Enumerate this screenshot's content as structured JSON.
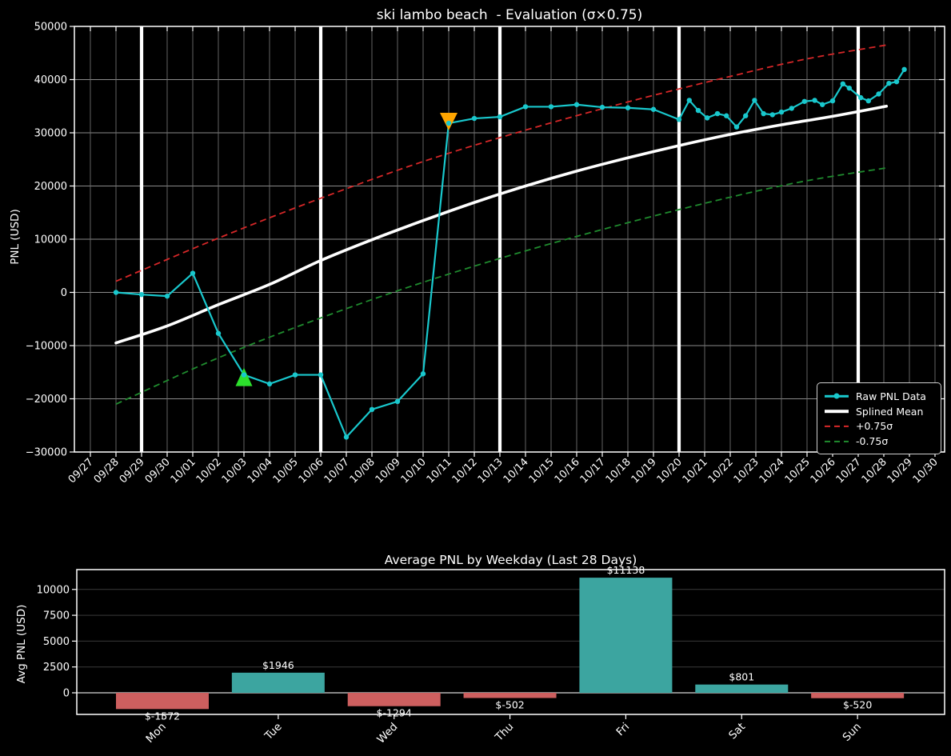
{
  "app": {
    "background": "#000000",
    "text_color": "#ffffff"
  },
  "chart_data": [
    {
      "type": "line",
      "title": "ski lambo beach  - Evaluation (σ×0.75)",
      "ylabel": "PNL (USD)",
      "ylim": [
        -30000,
        50000
      ],
      "y_ticks": [
        -30000,
        -20000,
        -10000,
        0,
        10000,
        20000,
        30000,
        40000,
        50000
      ],
      "x_tick_labels": [
        "09/27",
        "09/28",
        "09/29",
        "09/30",
        "10/01",
        "10/02",
        "10/03",
        "10/04",
        "10/05",
        "10/06",
        "10/07",
        "10/08",
        "10/09",
        "10/10",
        "10/11",
        "10/12",
        "10/13",
        "10/14",
        "10/15",
        "10/16",
        "10/17",
        "10/18",
        "10/19",
        "10/20",
        "10/21",
        "10/22",
        "10/23",
        "10/24",
        "10/25",
        "10/26",
        "10/27",
        "10/28",
        "10/29",
        "10/30"
      ],
      "week_boundary_dates": [
        "09/29",
        "10/06",
        "10/13",
        "10/20",
        "10/27"
      ],
      "week_boundary_color": "#ffffff",
      "grid": true,
      "grid_color_vertical": "#6e6e6e",
      "grid_color_horizontal": "#8a8a8a",
      "legend_position": "lower right",
      "series": [
        {
          "name": "Raw PNL Data",
          "color": "#19c8cd",
          "style": "line+markers",
          "points": [
            [
              1,
              0
            ],
            [
              2,
              -400
            ],
            [
              3,
              -700
            ],
            [
              4,
              3600
            ],
            [
              5,
              -7700
            ],
            [
              6,
              -15500
            ],
            [
              7,
              -17200
            ],
            [
              8,
              -15500
            ],
            [
              9,
              -15500
            ],
            [
              10,
              -27200
            ],
            [
              11,
              -22000
            ],
            [
              12,
              -20500
            ],
            [
              13,
              -15300
            ],
            [
              14,
              31800
            ],
            [
              15,
              32700
            ],
            [
              16,
              33000
            ],
            [
              17,
              34900
            ],
            [
              18,
              34900
            ],
            [
              19,
              35300
            ],
            [
              20,
              34800
            ],
            [
              21,
              34700
            ],
            [
              22,
              34400
            ],
            [
              23,
              32500
            ],
            [
              23.4,
              36100
            ],
            [
              23.75,
              34200
            ],
            [
              24.1,
              32800
            ],
            [
              24.5,
              33600
            ],
            [
              24.85,
              33200
            ],
            [
              25.25,
              31100
            ],
            [
              25.6,
              33200
            ],
            [
              25.95,
              36100
            ],
            [
              26.3,
              33600
            ],
            [
              26.65,
              33400
            ],
            [
              27,
              33900
            ],
            [
              27.4,
              34600
            ],
            [
              27.9,
              35900
            ],
            [
              28.3,
              36100
            ],
            [
              28.6,
              35300
            ],
            [
              29,
              36000
            ],
            [
              29.4,
              39200
            ],
            [
              29.65,
              38400
            ],
            [
              30.1,
              36600
            ],
            [
              30.4,
              36000
            ],
            [
              30.8,
              37300
            ],
            [
              31.2,
              39300
            ],
            [
              31.5,
              39600
            ],
            [
              31.8,
              41900
            ]
          ]
        },
        {
          "name": "Splined Mean",
          "color": "#ffffff",
          "style": "thick",
          "points": [
            [
              1,
              -9500
            ],
            [
              3,
              -6300
            ],
            [
              5,
              -2300
            ],
            [
              7,
              1500
            ],
            [
              9,
              6000
            ],
            [
              11,
              9900
            ],
            [
              13,
              13500
            ],
            [
              15,
              16900
            ],
            [
              17,
              20000
            ],
            [
              19,
              22800
            ],
            [
              21,
              25300
            ],
            [
              23,
              27600
            ],
            [
              25,
              29700
            ],
            [
              27,
              31500
            ],
            [
              29,
              33100
            ],
            [
              31.1,
              35000
            ]
          ]
        },
        {
          "name": "+0.75σ",
          "color": "#d62728",
          "style": "dashed",
          "points": [
            [
              1,
              2100
            ],
            [
              5,
              10200
            ],
            [
              9,
              17700
            ],
            [
              13,
              24600
            ],
            [
              17,
              30500
            ],
            [
              21,
              35800
            ],
            [
              25,
              40600
            ],
            [
              28,
              43900
            ],
            [
              31.1,
              46500
            ]
          ]
        },
        {
          "name": "-0.75σ",
          "color": "#1f8b2e",
          "style": "dashed",
          "points": [
            [
              1,
              -21000
            ],
            [
              5,
              -12300
            ],
            [
              9,
              -4800
            ],
            [
              13,
              1900
            ],
            [
              17,
              7800
            ],
            [
              21,
              13100
            ],
            [
              25,
              17900
            ],
            [
              28,
              21000
            ],
            [
              31.1,
              23400
            ]
          ]
        }
      ],
      "annotations": [
        {
          "shape": "triangle-up",
          "name": "entry-marker",
          "color": "#2ce02c",
          "x": 6,
          "y": -15500
        },
        {
          "shape": "triangle-down",
          "name": "exit-marker",
          "color": "#ffa500",
          "x": 14,
          "y": 31800
        }
      ]
    },
    {
      "type": "bar",
      "title": "Average PNL by Weekday (Last 28 Days)",
      "ylabel": "Avg PNL (USD)",
      "categories": [
        "Mon",
        "Tue",
        "Wed",
        "Thu",
        "Fri",
        "Sat",
        "Sun"
      ],
      "values": [
        -1572,
        1946,
        -1294,
        -502,
        11138,
        801,
        -520
      ],
      "bar_labels": [
        "$-1572",
        "$1946",
        "$-1294",
        "$-502",
        "$11138",
        "$801",
        "$-520"
      ],
      "positive_color": "#3ca5a0",
      "negative_color": "#cd5f5f",
      "y_ticks": [
        0,
        2500,
        5000,
        7500,
        10000
      ],
      "ylim": [
        -2100,
        11850
      ],
      "zero_line_color": "#999999",
      "grid_color": "#3a3a3a"
    }
  ]
}
